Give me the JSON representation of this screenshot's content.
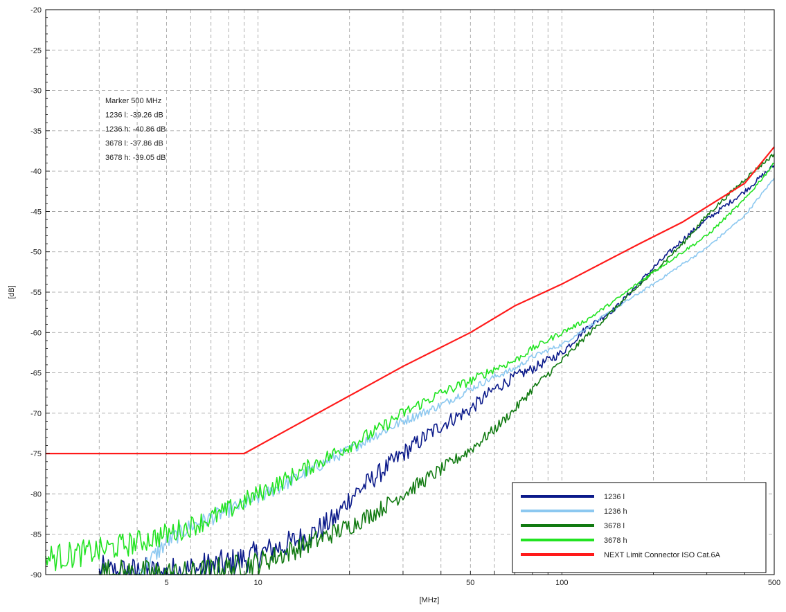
{
  "chart_data": {
    "type": "line",
    "xlabel": "[MHz]",
    "ylabel": "[dB]",
    "x_scale": "log",
    "xlim": [
      2,
      500
    ],
    "ylim": [
      -90,
      -20
    ],
    "grid": true,
    "legend_placement": "bottom-right",
    "x_ticks": [
      5,
      10,
      50,
      100,
      500
    ],
    "x_tick_labels": [
      "5",
      "10",
      "50",
      "100",
      "500"
    ],
    "y_ticks": [
      -20,
      -25,
      -30,
      -35,
      -40,
      -45,
      -50,
      -55,
      -60,
      -65,
      -70,
      -75,
      -80,
      -85,
      -90
    ],
    "y_tick_labels": [
      "-20",
      "-25",
      "-30",
      "-35",
      "-40",
      "-45",
      "-50",
      "-55",
      "-60",
      "-65",
      "-70",
      "-75",
      "-80",
      "-85",
      "-90"
    ],
    "annotations": [
      "Marker 500 MHz",
      "1236 l: -39.26 dB",
      "1236 h: -40.86 dB",
      "3678 l: -37.86 dB",
      "3678 h: -39.05 dB"
    ],
    "series": [
      {
        "name": "1236 l",
        "color": "#0b1a8a",
        "noise": 1.2,
        "x": [
          3.0,
          4.0,
          5.0,
          6.0,
          7.0,
          8.0,
          10.0,
          12.0,
          15.0,
          18.0,
          20.0,
          25.0,
          30.0,
          40.0,
          50.0,
          60.0,
          70.0,
          80.0,
          100.0,
          120.0,
          150.0,
          200.0,
          250.0,
          300.0,
          400.0,
          500.0
        ],
        "y": [
          -90.0,
          -90.0,
          -90.0,
          -89.5,
          -89.0,
          -88.7,
          -87.5,
          -86.5,
          -85.0,
          -83.0,
          -80.5,
          -77.5,
          -75.0,
          -71.5,
          -69.5,
          -67.0,
          -65.5,
          -64.5,
          -62.5,
          -59.5,
          -57.0,
          -52.0,
          -48.5,
          -46.0,
          -42.5,
          -39.26
        ]
      },
      {
        "name": "1236 h",
        "color": "#8cc8f0",
        "noise": 0.6,
        "x": [
          4.0,
          5.0,
          6.0,
          7.0,
          8.0,
          10.0,
          12.0,
          15.0,
          20.0,
          25.0,
          30.0,
          40.0,
          50.0,
          60.0,
          70.0,
          80.0,
          100.0,
          120.0,
          150.0,
          200.0,
          250.0,
          300.0,
          400.0,
          500.0
        ],
        "y": [
          -90.0,
          -86.0,
          -84.0,
          -83.0,
          -82.0,
          -80.5,
          -79.0,
          -77.0,
          -74.5,
          -72.5,
          -71.0,
          -69.0,
          -67.0,
          -65.5,
          -64.5,
          -63.0,
          -61.5,
          -59.5,
          -57.0,
          -54.0,
          -51.5,
          -49.5,
          -45.5,
          -40.86
        ]
      },
      {
        "name": "3678 l",
        "color": "#117a11",
        "noise": 1.0,
        "x": [
          3.0,
          4.0,
          5.0,
          6.0,
          7.0,
          8.0,
          10.0,
          12.0,
          15.0,
          20.0,
          25.0,
          30.0,
          40.0,
          50.0,
          60.0,
          70.0,
          80.0,
          100.0,
          120.0,
          150.0,
          200.0,
          250.0,
          300.0,
          400.0,
          500.0
        ],
        "y": [
          -90.0,
          -90.0,
          -90.0,
          -90.0,
          -89.5,
          -89.2,
          -88.5,
          -87.5,
          -86.0,
          -84.0,
          -82.0,
          -80.0,
          -77.0,
          -74.5,
          -72.0,
          -69.5,
          -67.0,
          -63.5,
          -60.5,
          -57.0,
          -52.5,
          -49.0,
          -45.5,
          -41.0,
          -37.86
        ]
      },
      {
        "name": "3678 h",
        "color": "#22e322",
        "noise": 0.8,
        "x": [
          2.0,
          2.5,
          3.0,
          4.0,
          5.0,
          6.0,
          7.0,
          8.0,
          10.0,
          12.0,
          15.0,
          20.0,
          25.0,
          30.0,
          40.0,
          50.0,
          60.0,
          70.0,
          80.0,
          100.0,
          120.0,
          150.0,
          200.0,
          250.0,
          300.0,
          400.0,
          500.0
        ],
        "y": [
          -88.0,
          -87.5,
          -87.0,
          -86.0,
          -85.0,
          -84.0,
          -83.0,
          -82.0,
          -80.0,
          -78.5,
          -76.5,
          -74.0,
          -72.0,
          -70.0,
          -67.5,
          -66.0,
          -64.5,
          -63.5,
          -62.0,
          -60.0,
          -58.5,
          -56.0,
          -52.5,
          -50.0,
          -48.0,
          -43.5,
          -39.05
        ]
      },
      {
        "name": "NEXT Limit Connector ISO Cat.6A",
        "color": "#ff1a1a",
        "noise": 0,
        "x": [
          2.0,
          9.0,
          13.0,
          30.0,
          50.0,
          70.0,
          100.0,
          180.0,
          250.0,
          400.0,
          500.0
        ],
        "y": [
          -75.0,
          -75.0,
          -71.7,
          -64.2,
          -60.0,
          -56.7,
          -54.0,
          -49.0,
          -46.3,
          -41.5,
          -37.0
        ]
      }
    ]
  }
}
